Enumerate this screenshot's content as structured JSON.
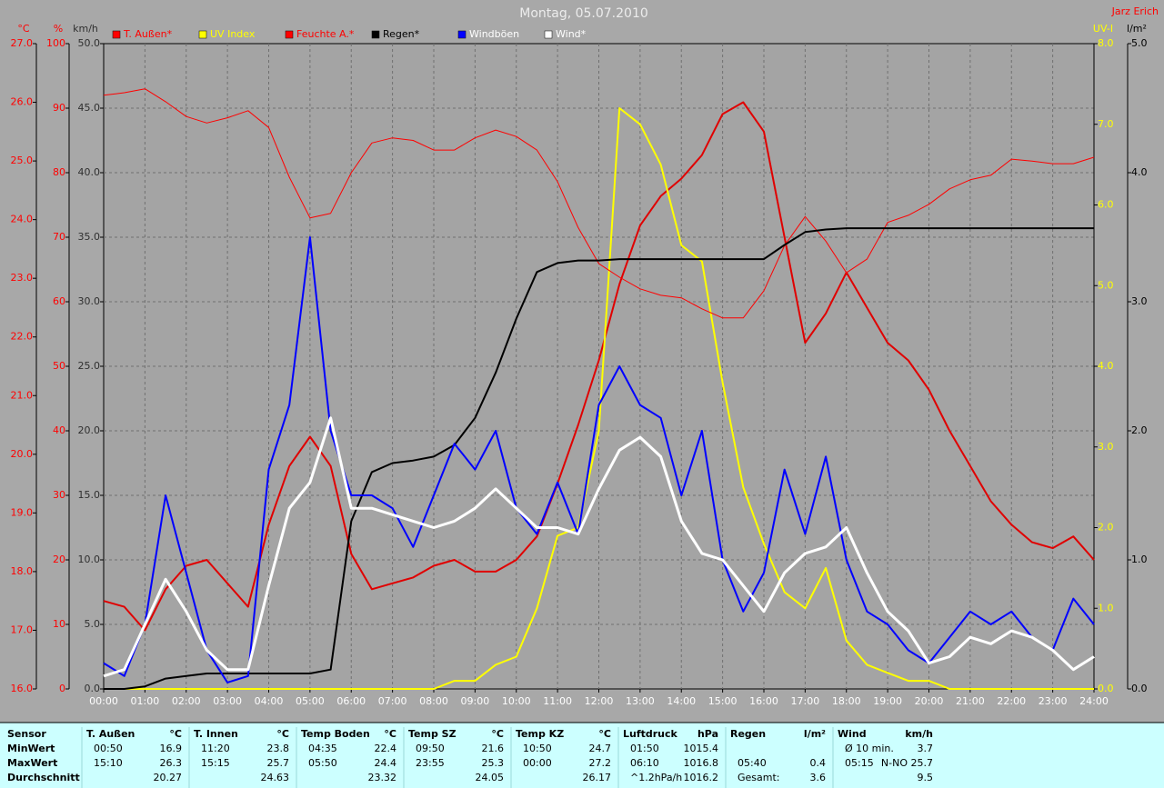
{
  "chart_data": {
    "type": "line",
    "title": "Montag, 05.07.2010",
    "annotations": [
      "Jarz Erich"
    ],
    "grid": true,
    "x": [
      0,
      0.5,
      1,
      1.5,
      2,
      2.5,
      3,
      3.5,
      4,
      4.5,
      5,
      5.5,
      6,
      6.5,
      7,
      7.5,
      8,
      8.5,
      9,
      9.5,
      10,
      10.5,
      11,
      11.5,
      12,
      12.5,
      13,
      13.5,
      14,
      14.5,
      15,
      15.5,
      16,
      16.5,
      17,
      17.5,
      18,
      18.5,
      19,
      19.5,
      20,
      20.5,
      21,
      21.5,
      22,
      22.5,
      23,
      23.5,
      24
    ],
    "xlim": [
      0,
      24
    ],
    "xticks": [
      {
        "value": 0,
        "label": "00:00"
      },
      {
        "value": 1,
        "label": "01:00"
      },
      {
        "value": 2,
        "label": "02:00"
      },
      {
        "value": 3,
        "label": "03:00"
      },
      {
        "value": 4,
        "label": "04:00"
      },
      {
        "value": 5,
        "label": "05:00"
      },
      {
        "value": 6,
        "label": "06:00"
      },
      {
        "value": 7,
        "label": "07:00"
      },
      {
        "value": 8,
        "label": "08:00"
      },
      {
        "value": 9,
        "label": "09:00"
      },
      {
        "value": 10,
        "label": "10:00"
      },
      {
        "value": 11,
        "label": "11:00"
      },
      {
        "value": 12,
        "label": "12:00"
      },
      {
        "value": 13,
        "label": "13:00"
      },
      {
        "value": 14,
        "label": "14:00"
      },
      {
        "value": 15,
        "label": "15:00"
      },
      {
        "value": 16,
        "label": "16:00"
      },
      {
        "value": 17,
        "label": "17:00"
      },
      {
        "value": 18,
        "label": "18:00"
      },
      {
        "value": 19,
        "label": "19:00"
      },
      {
        "value": 20,
        "label": "20:00"
      },
      {
        "value": 21,
        "label": "21:00"
      },
      {
        "value": 22,
        "label": "22:00"
      },
      {
        "value": 23,
        "label": "23:00"
      },
      {
        "value": 24,
        "label": "24:00"
      }
    ],
    "axes": [
      {
        "label": "°C",
        "color": "#ff0000",
        "side": "left",
        "lim": [
          16,
          27
        ],
        "ticks": [
          {
            "value": 16,
            "label": "16.0"
          },
          {
            "value": 17,
            "label": "17.0"
          },
          {
            "value": 18,
            "label": "18.0"
          },
          {
            "value": 19,
            "label": "19.0"
          },
          {
            "value": 20,
            "label": "20.0"
          },
          {
            "value": 21,
            "label": "21.0"
          },
          {
            "value": 22,
            "label": "22.0"
          },
          {
            "value": 23,
            "label": "23.0"
          },
          {
            "value": 24,
            "label": "24.0"
          },
          {
            "value": 25,
            "label": "25.0"
          },
          {
            "value": 26,
            "label": "26.0"
          },
          {
            "value": 27,
            "label": "27.0"
          }
        ]
      },
      {
        "label": "%",
        "color": "#ff0000",
        "side": "left",
        "lim": [
          0,
          100
        ],
        "ticks": [
          0,
          10,
          20,
          30,
          40,
          50,
          60,
          70,
          80,
          90,
          100
        ]
      },
      {
        "label": "km/h",
        "color": "#303030",
        "side": "left",
        "lim": [
          0,
          50
        ],
        "grid": true,
        "ticks": [
          {
            "value": 0,
            "label": "0.0"
          },
          {
            "value": 5,
            "label": "5.0"
          },
          {
            "value": 10,
            "label": "10.0"
          },
          {
            "value": 15,
            "label": "15.0"
          },
          {
            "value": 20,
            "label": "20.0"
          },
          {
            "value": 25,
            "label": "25.0"
          },
          {
            "value": 30,
            "label": "30.0"
          },
          {
            "value": 35,
            "label": "35.0"
          },
          {
            "value": 40,
            "label": "40.0"
          },
          {
            "value": 45,
            "label": "45.0"
          },
          {
            "value": 50,
            "label": "50.0"
          }
        ]
      },
      {
        "label": "UV-I",
        "color": "#ffff00",
        "side": "right",
        "lim": [
          0,
          8
        ],
        "ticks": [
          {
            "value": 0,
            "label": "0.0"
          },
          {
            "value": 1,
            "label": "1.0"
          },
          {
            "value": 2,
            "label": "2.0"
          },
          {
            "value": 3,
            "label": "3.0"
          },
          {
            "value": 4,
            "label": "4.0"
          },
          {
            "value": 5,
            "label": "5.0"
          },
          {
            "value": 6,
            "label": "6.0"
          },
          {
            "value": 7,
            "label": "7.0"
          },
          {
            "value": 8,
            "label": "8.0"
          }
        ]
      },
      {
        "label": "l/m²",
        "color": "#000000",
        "side": "right",
        "lim": [
          0,
          5
        ],
        "ticks": [
          {
            "value": 0,
            "label": "0.0"
          },
          {
            "value": 1,
            "label": "1.0"
          },
          {
            "value": 2,
            "label": "2.0"
          },
          {
            "value": 3,
            "label": "3.0"
          },
          {
            "value": 4,
            "label": "4.0"
          },
          {
            "value": 5,
            "label": "5.0"
          }
        ]
      }
    ],
    "series": [
      {
        "name": "T. Außen*",
        "color": "#e00000",
        "legend_color": "#ff0000",
        "label_color": "#ff0000",
        "width": 2,
        "axis": 0,
        "values": [
          17.5,
          17.4,
          17.0,
          17.7,
          18.1,
          18.2,
          17.8,
          17.4,
          18.8,
          19.8,
          20.3,
          19.8,
          18.3,
          17.7,
          17.8,
          17.9,
          18.1,
          18.2,
          18.0,
          18.0,
          18.2,
          18.6,
          19.5,
          20.5,
          21.6,
          22.9,
          23.9,
          24.4,
          24.7,
          25.1,
          25.8,
          26.0,
          25.5,
          23.7,
          21.9,
          22.4,
          23.1,
          22.5,
          21.9,
          21.6,
          21.1,
          20.4,
          19.8,
          19.2,
          18.8,
          18.5,
          18.4,
          18.6,
          18.2
        ]
      },
      {
        "name": "UV Index",
        "color": "#ffff00",
        "legend_color": "#ffff00",
        "label_color": "#ffff00",
        "width": 2,
        "axis": 3,
        "values": [
          0,
          0,
          0,
          0,
          0,
          0,
          0,
          0,
          0,
          0,
          0,
          0,
          0,
          0,
          0,
          0,
          0,
          0.1,
          0.1,
          0.3,
          0.4,
          1.0,
          1.9,
          2.0,
          3.2,
          7.2,
          7.0,
          6.5,
          5.5,
          5.3,
          3.8,
          2.5,
          1.8,
          1.2,
          1.0,
          1.5,
          0.6,
          0.3,
          0.2,
          0.1,
          0.1,
          0,
          0,
          0,
          0,
          0,
          0,
          0,
          0
        ]
      },
      {
        "name": "Feuchte A.*",
        "color": "#ff0000",
        "legend_color": "#ff0000",
        "label_color": "#ff0000",
        "width": 1,
        "axis": 1,
        "values": [
          92,
          92.4,
          93,
          91,
          88.7,
          87.7,
          88.5,
          89.6,
          87,
          79.3,
          73,
          73.7,
          80,
          84.6,
          85.4,
          85,
          83.5,
          83.5,
          85.4,
          86.6,
          85.6,
          83.5,
          78.6,
          71.5,
          65.9,
          63.8,
          62,
          61,
          60.6,
          58.9,
          57.5,
          57.5,
          61.7,
          68.7,
          73.2,
          69.4,
          64.5,
          66.6,
          72.3,
          73.4,
          75.1,
          77.5,
          78.9,
          79.6,
          82.1,
          81.8,
          81.4,
          81.4,
          82.4
        ]
      },
      {
        "name": "Regen*",
        "color": "#000000",
        "legend_color": "#000000",
        "label_color": "#000000",
        "width": 2,
        "axis": 4,
        "values": [
          0,
          0,
          0.02,
          0.08,
          0.1,
          0.12,
          0.12,
          0.12,
          0.12,
          0.12,
          0.12,
          0.15,
          1.3,
          1.68,
          1.75,
          1.77,
          1.8,
          1.89,
          2.1,
          2.45,
          2.87,
          3.23,
          3.3,
          3.32,
          3.32,
          3.33,
          3.33,
          3.33,
          3.33,
          3.33,
          3.33,
          3.33,
          3.33,
          3.44,
          3.54,
          3.56,
          3.57,
          3.57,
          3.57,
          3.57,
          3.57,
          3.57,
          3.57,
          3.57,
          3.57,
          3.57,
          3.57,
          3.57,
          3.57
        ]
      },
      {
        "name": "Windböen",
        "color": "#0000ff",
        "legend_color": "#0000ff",
        "label_color": "#ffffff",
        "width": 2,
        "axis": 2,
        "values": [
          2,
          1,
          5,
          15,
          9,
          3,
          0.5,
          1,
          17,
          22,
          35,
          20,
          15,
          15,
          14,
          11,
          15,
          19,
          17,
          20,
          14,
          12,
          16,
          12,
          22,
          25,
          22,
          21,
          15,
          20,
          10,
          6,
          9,
          17,
          12,
          18,
          10,
          6,
          5,
          3,
          2,
          4,
          6,
          5,
          6,
          4,
          3,
          7,
          5
        ]
      },
      {
        "name": "Wind*",
        "color": "#ffffff",
        "legend_color": "#ffffff",
        "label_color": "#ffffff",
        "width": 3,
        "axis": 2,
        "values": [
          1,
          1.5,
          5,
          8.5,
          6,
          3,
          1.5,
          1.5,
          8,
          14,
          16,
          21,
          14,
          14,
          13.5,
          13,
          12.5,
          13,
          14,
          15.5,
          14,
          12.5,
          12.5,
          12,
          15.5,
          18.5,
          19.5,
          18,
          13,
          10.5,
          10,
          8,
          6,
          9,
          10.5,
          11,
          12.5,
          9,
          6,
          4.5,
          2,
          2.5,
          4,
          3.5,
          4.5,
          4,
          3,
          1.5,
          2.5
        ]
      }
    ]
  },
  "stats_table": {
    "row_labels": [
      "Sensor",
      "MinWert",
      "MaxWert",
      "Durchschnitt"
    ],
    "groups": [
      {
        "name": "T. Außen",
        "unit": "°C",
        "rows": [
          [
            "00:50",
            "16.9"
          ],
          [
            "15:10",
            "26.3"
          ],
          [
            null,
            "20.27"
          ]
        ]
      },
      {
        "name": "T. Innen",
        "unit": "°C",
        "rows": [
          [
            "11:20",
            "23.8"
          ],
          [
            "15:15",
            "25.7"
          ],
          [
            null,
            "24.63"
          ]
        ]
      },
      {
        "name": "Temp Boden",
        "unit": "°C",
        "rows": [
          [
            "04:35",
            "22.4"
          ],
          [
            "05:50",
            "24.4"
          ],
          [
            null,
            "23.32"
          ]
        ]
      },
      {
        "name": "Temp SZ",
        "unit": "°C",
        "rows": [
          [
            "09:50",
            "21.6"
          ],
          [
            "23:55",
            "25.3"
          ],
          [
            null,
            "24.05"
          ]
        ]
      },
      {
        "name": "Temp KZ",
        "unit": "°C",
        "rows": [
          [
            "10:50",
            "24.7"
          ],
          [
            "00:00",
            "27.2"
          ],
          [
            null,
            "26.17"
          ]
        ]
      },
      {
        "name": "Luftdruck",
        "unit": "hPa",
        "rows": [
          [
            "01:50",
            "1015.4"
          ],
          [
            "06:10",
            "1016.8"
          ],
          [
            "^1.2hPa/h",
            "1016.2"
          ]
        ]
      },
      {
        "name": "Regen",
        "unit": "l/m²",
        "rows": [
          [
            null,
            null
          ],
          [
            "05:40",
            "0.4"
          ],
          [
            "Gesamt:",
            "3.6"
          ]
        ]
      },
      {
        "name": "Wind",
        "unit": "km/h",
        "rows": [
          [
            "Ø 10 min.",
            "3.7"
          ],
          [
            "05:15",
            "N-NO 25.7"
          ],
          [
            null,
            "9.5"
          ]
        ]
      }
    ]
  }
}
